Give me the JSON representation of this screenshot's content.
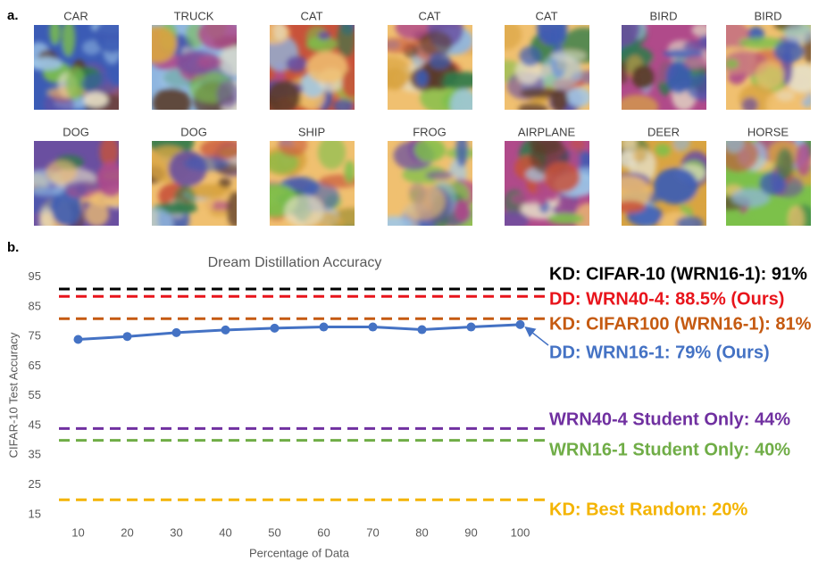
{
  "panel_a": {
    "label": "a.",
    "images": [
      "CAR",
      "TRUCK",
      "CAT",
      "CAT",
      "CAT",
      "BIRD",
      "BIRD",
      "DOG",
      "DOG",
      "SHIP",
      "FROG",
      "AIRPLANE",
      "DEER",
      "HORSE"
    ]
  },
  "panel_b": {
    "label": "b."
  },
  "chart_data": {
    "type": "line",
    "title": "Dream Distillation Accuracy",
    "x_label": "Percentage of Data",
    "y_label": "CIFAR-10 Test Accuracy",
    "categories": [
      "10",
      "20",
      "30",
      "40",
      "50",
      "60",
      "70",
      "80",
      "90",
      "100"
    ],
    "series": [
      {
        "name": "DD: WRN16-1: 79% (Ours)",
        "color": "#4472c4",
        "values": [
          74,
          75,
          76.3,
          77.2,
          77.8,
          78.2,
          78.2,
          77.3,
          78.2,
          79
        ]
      }
    ],
    "reference_lines": [
      {
        "label": "KD: CIFAR-10 (WRN16-1): 91%",
        "value": 91,
        "color": "#000000"
      },
      {
        "label": "DD: WRN40-4: 88.5% (Ours)",
        "value": 88.5,
        "color": "#e8141b"
      },
      {
        "label": "KD: CIFAR100 (WRN16-1): 81%",
        "value": 81,
        "color": "#c55a11"
      },
      {
        "label": "WRN40-4 Student Only: 44%",
        "value": 44,
        "color": "#7030a0"
      },
      {
        "label": "WRN16-1 Student Only: 40%",
        "value": 40,
        "color": "#70ad47"
      },
      {
        "label": "KD: Best Random: 20%",
        "value": 20,
        "color": "#f4b400"
      }
    ],
    "ylim": [
      10,
      100
    ],
    "yticks": [
      15,
      25,
      35,
      45,
      55,
      65,
      75,
      85,
      95
    ],
    "grid": false
  }
}
